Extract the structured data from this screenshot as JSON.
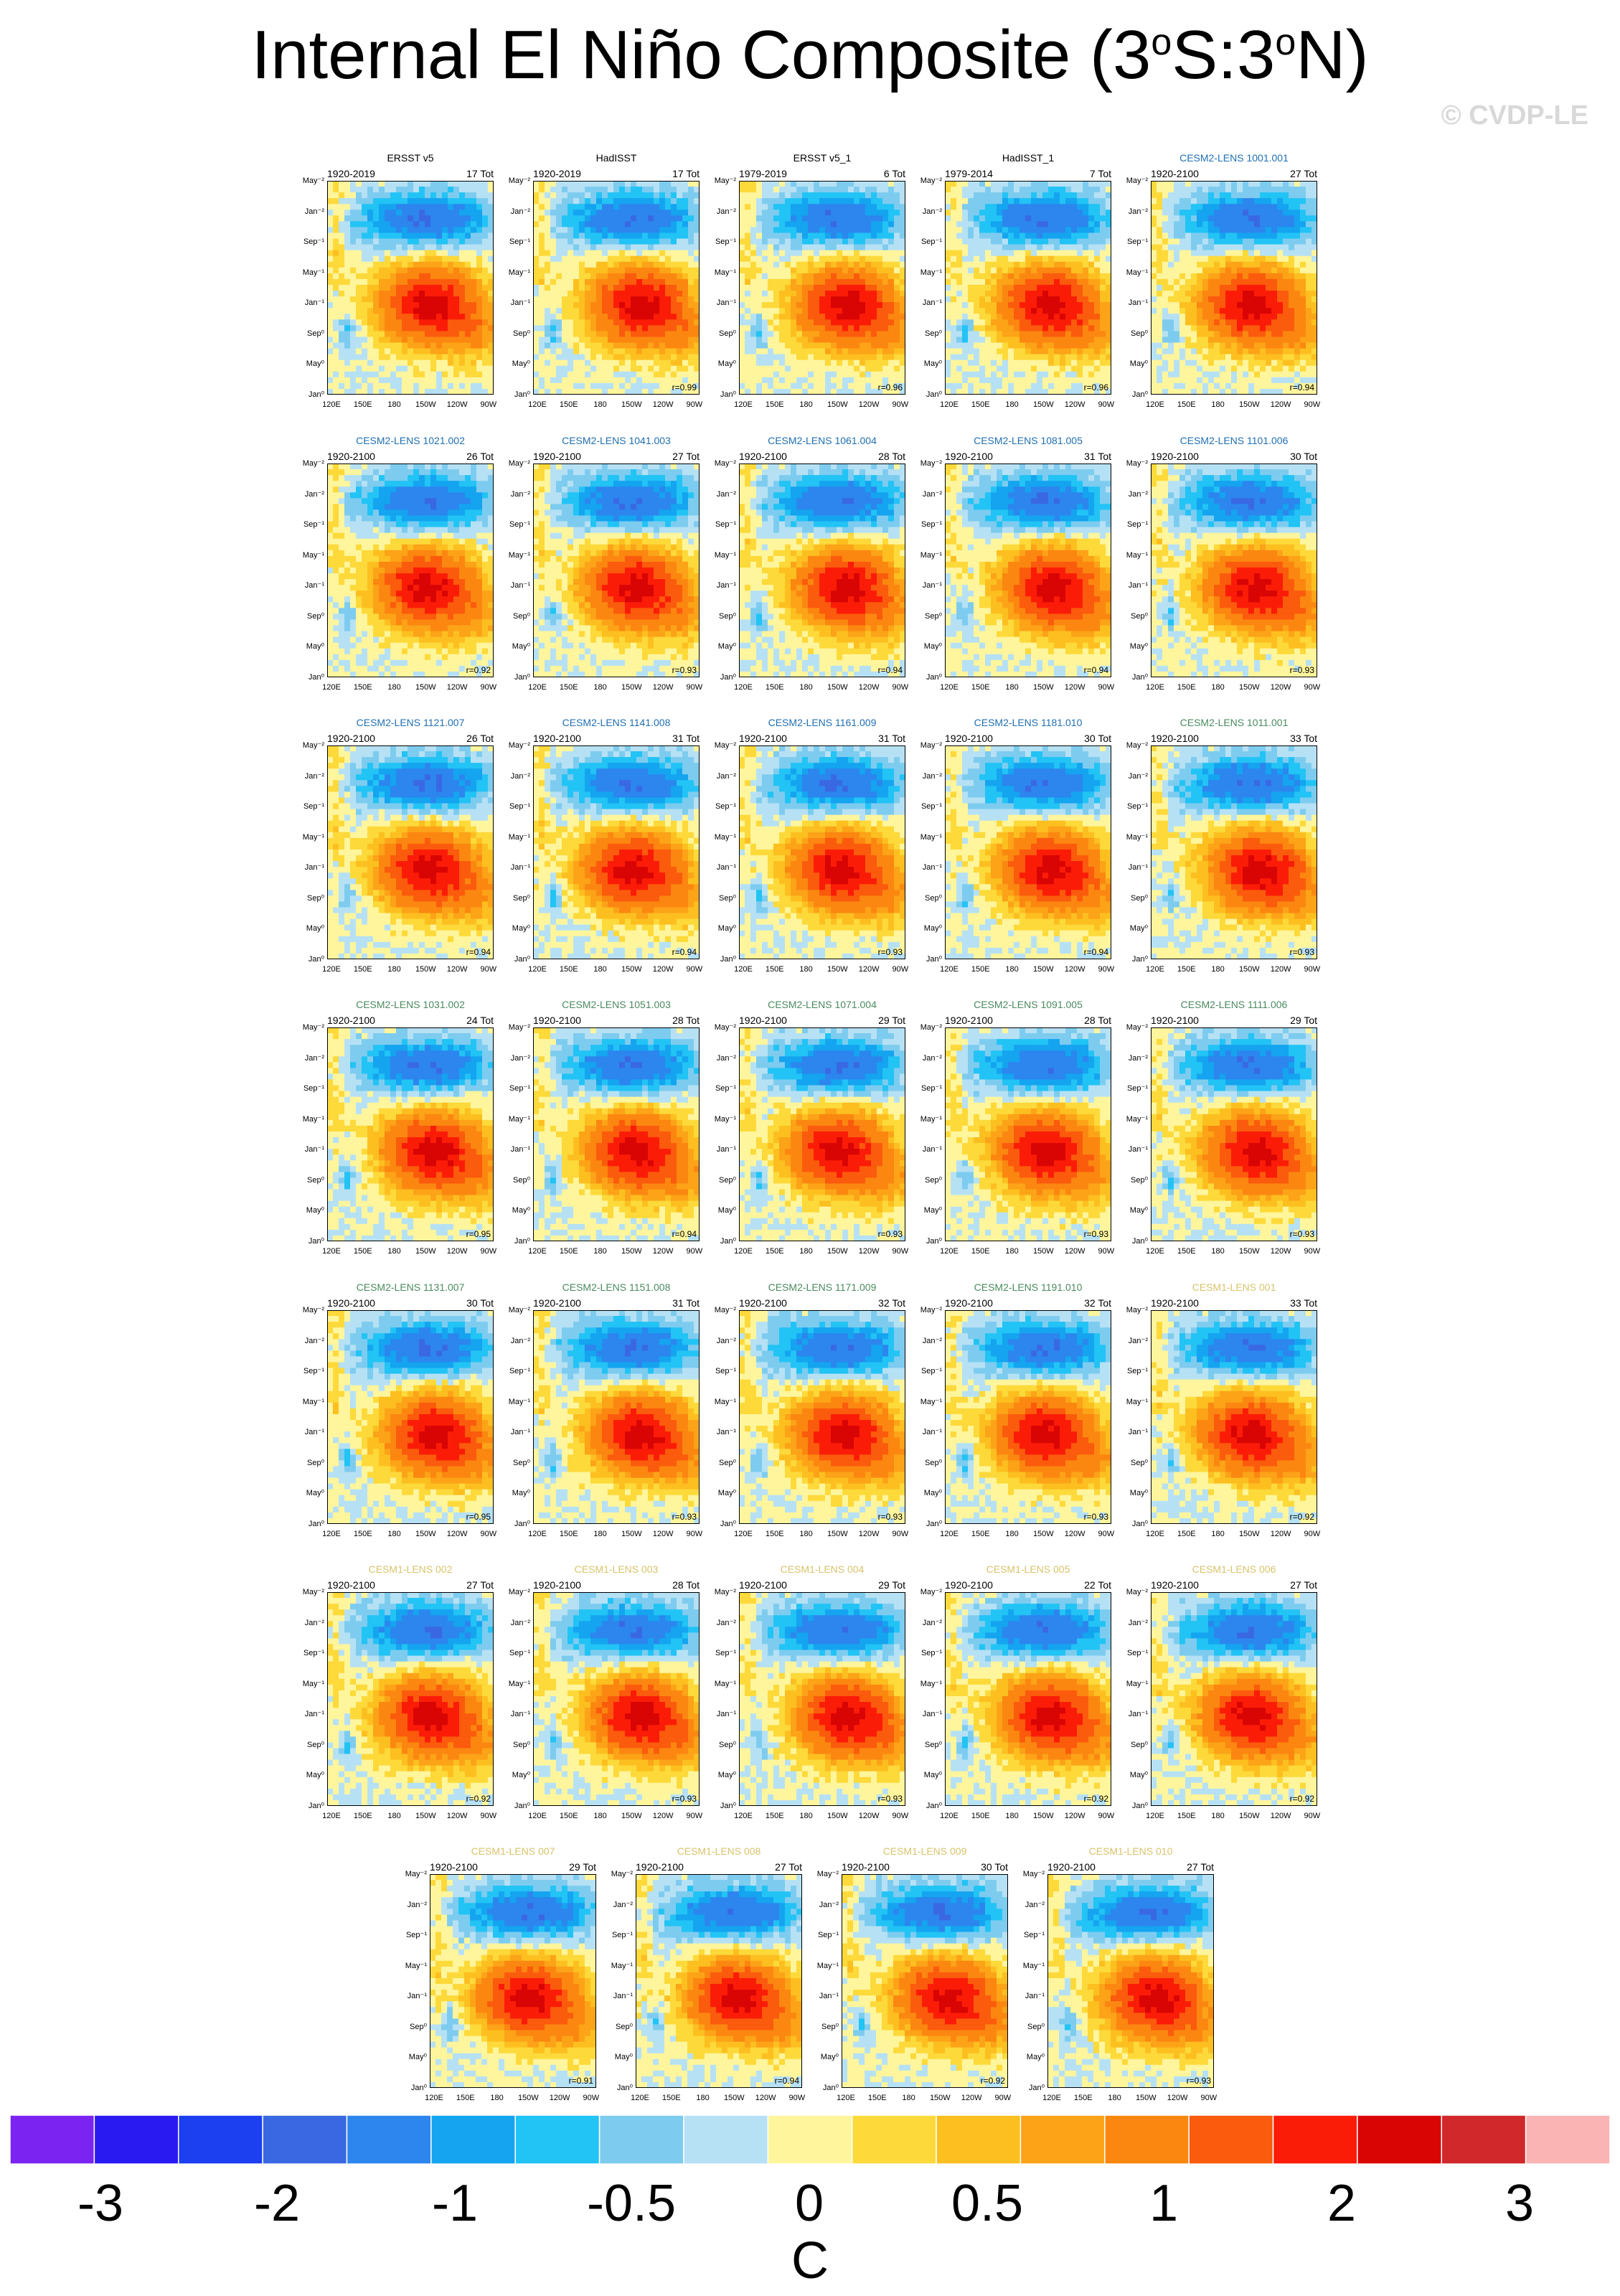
{
  "title_main": "Internal El Niño Composite (3",
  "title_deg1": "o",
  "title_mid": "S:3",
  "title_deg2": "o",
  "title_end": "N)",
  "credit": "© CVDP-LE",
  "colorbar": {
    "colors": [
      "#7b24f2",
      "#2a1af2",
      "#1c3ff0",
      "#3a68e3",
      "#2c86ee",
      "#14a4f0",
      "#22c3f5",
      "#7dccef",
      "#b6e1f4",
      "#fff59d",
      "#fdd93a",
      "#fdbf20",
      "#fca318",
      "#fb8710",
      "#fb5b0c",
      "#fb1c08",
      "#d90404",
      "#d1282c",
      "#fbb4b4"
    ],
    "labels": [
      "-3",
      "-2",
      "-1",
      "-0.5",
      "0",
      "0.5",
      "1",
      "2",
      "3"
    ],
    "unit": "C"
  },
  "axis": {
    "y_ticks": [
      "May⁻²",
      "Jan⁻²",
      "Sep⁻¹",
      "May⁻¹",
      "Jan⁻¹",
      "Sep⁰",
      "May⁰",
      "Jan⁰"
    ],
    "x_ticks": [
      "120E",
      "150E",
      "180",
      "150W",
      "120W",
      "90W"
    ]
  },
  "chart_data": {
    "type": "heatmap",
    "description_units": "SST anomaly composite (C), Hovmöller longitude vs. lag month",
    "panels": [
      {
        "name": "ERSST v5",
        "years": "1920-2019",
        "tot": "17 Tot",
        "r": "",
        "color": "#000000"
      },
      {
        "name": "HadISST",
        "years": "1920-2019",
        "tot": "17 Tot",
        "r": "r=0.99",
        "color": "#000000"
      },
      {
        "name": "ERSST v5_1",
        "years": "1979-2019",
        "tot": "6 Tot",
        "r": "r=0.96",
        "color": "#000000"
      },
      {
        "name": "HadISST_1",
        "years": "1979-2014",
        "tot": "7 Tot",
        "r": "r=0.96",
        "color": "#000000"
      },
      {
        "name": "CESM2-LENS 1001.001",
        "years": "1920-2100",
        "tot": "27 Tot",
        "r": "r=0.94",
        "color": "#1f6fb2"
      },
      {
        "name": "CESM2-LENS 1021.002",
        "years": "1920-2100",
        "tot": "26 Tot",
        "r": "r=0.92",
        "color": "#1f6fb2"
      },
      {
        "name": "CESM2-LENS 1041.003",
        "years": "1920-2100",
        "tot": "27 Tot",
        "r": "r=0.93",
        "color": "#1f6fb2"
      },
      {
        "name": "CESM2-LENS 1061.004",
        "years": "1920-2100",
        "tot": "28 Tot",
        "r": "r=0.94",
        "color": "#1f6fb2"
      },
      {
        "name": "CESM2-LENS 1081.005",
        "years": "1920-2100",
        "tot": "31 Tot",
        "r": "r=0.94",
        "color": "#1f6fb2"
      },
      {
        "name": "CESM2-LENS 1101.006",
        "years": "1920-2100",
        "tot": "30 Tot",
        "r": "r=0.93",
        "color": "#1f6fb2"
      },
      {
        "name": "CESM2-LENS 1121.007",
        "years": "1920-2100",
        "tot": "26 Tot",
        "r": "r=0.94",
        "color": "#1f6fb2"
      },
      {
        "name": "CESM2-LENS 1141.008",
        "years": "1920-2100",
        "tot": "31 Tot",
        "r": "r=0.94",
        "color": "#1f6fb2"
      },
      {
        "name": "CESM2-LENS 1161.009",
        "years": "1920-2100",
        "tot": "31 Tot",
        "r": "r=0.93",
        "color": "#1f6fb2"
      },
      {
        "name": "CESM2-LENS 1181.010",
        "years": "1920-2100",
        "tot": "30 Tot",
        "r": "r=0.94",
        "color": "#1f6fb2"
      },
      {
        "name": "CESM2-LENS 1011.001",
        "years": "1920-2100",
        "tot": "33 Tot",
        "r": "r=0.93",
        "color": "#4a8a5e"
      },
      {
        "name": "CESM2-LENS 1031.002",
        "years": "1920-2100",
        "tot": "24 Tot",
        "r": "r=0.95",
        "color": "#4a8a5e"
      },
      {
        "name": "CESM2-LENS 1051.003",
        "years": "1920-2100",
        "tot": "28 Tot",
        "r": "r=0.94",
        "color": "#4a8a5e"
      },
      {
        "name": "CESM2-LENS 1071.004",
        "years": "1920-2100",
        "tot": "29 Tot",
        "r": "r=0.93",
        "color": "#4a8a5e"
      },
      {
        "name": "CESM2-LENS 1091.005",
        "years": "1920-2100",
        "tot": "28 Tot",
        "r": "r=0.93",
        "color": "#4a8a5e"
      },
      {
        "name": "CESM2-LENS 1111.006",
        "years": "1920-2100",
        "tot": "29 Tot",
        "r": "r=0.93",
        "color": "#4a8a5e"
      },
      {
        "name": "CESM2-LENS 1131.007",
        "years": "1920-2100",
        "tot": "30 Tot",
        "r": "r=0.95",
        "color": "#4a8a5e"
      },
      {
        "name": "CESM2-LENS 1151.008",
        "years": "1920-2100",
        "tot": "31 Tot",
        "r": "r=0.93",
        "color": "#4a8a5e"
      },
      {
        "name": "CESM2-LENS 1171.009",
        "years": "1920-2100",
        "tot": "32 Tot",
        "r": "r=0.93",
        "color": "#4a8a5e"
      },
      {
        "name": "CESM2-LENS 1191.010",
        "years": "1920-2100",
        "tot": "32 Tot",
        "r": "r=0.93",
        "color": "#4a8a5e"
      },
      {
        "name": "CESM1-LENS 001",
        "years": "1920-2100",
        "tot": "33 Tot",
        "r": "r=0.92",
        "color": "#d9c36a"
      },
      {
        "name": "CESM1-LENS 002",
        "years": "1920-2100",
        "tot": "27 Tot",
        "r": "r=0.92",
        "color": "#d9c36a"
      },
      {
        "name": "CESM1-LENS 003",
        "years": "1920-2100",
        "tot": "28 Tot",
        "r": "r=0.93",
        "color": "#d9c36a"
      },
      {
        "name": "CESM1-LENS 004",
        "years": "1920-2100",
        "tot": "29 Tot",
        "r": "r=0.93",
        "color": "#d9c36a"
      },
      {
        "name": "CESM1-LENS 005",
        "years": "1920-2100",
        "tot": "22 Tot",
        "r": "r=0.92",
        "color": "#d9c36a"
      },
      {
        "name": "CESM1-LENS 006",
        "years": "1920-2100",
        "tot": "27 Tot",
        "r": "r=0.92",
        "color": "#d9c36a"
      },
      {
        "name": "CESM1-LENS 007",
        "years": "1920-2100",
        "tot": "29 Tot",
        "r": "r=0.91",
        "color": "#d9c36a"
      },
      {
        "name": "CESM1-LENS 008",
        "years": "1920-2100",
        "tot": "27 Tot",
        "r": "r=0.94",
        "color": "#d9c36a"
      },
      {
        "name": "CESM1-LENS 009",
        "years": "1920-2100",
        "tot": "30 Tot",
        "r": "r=0.92",
        "color": "#d9c36a"
      },
      {
        "name": "CESM1-LENS 010",
        "years": "1920-2100",
        "tot": "27 Tot",
        "r": "r=0.93",
        "color": "#d9c36a"
      }
    ]
  }
}
